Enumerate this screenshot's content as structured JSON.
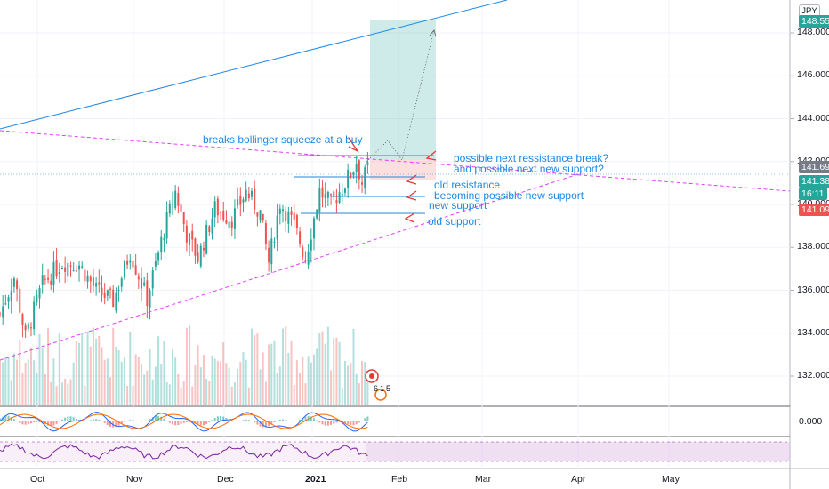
{
  "currency_badge": "JPY",
  "chart_data": {
    "type": "candlestick",
    "x_tick_labels": [
      "Oct",
      "Nov",
      "Dec",
      "2021",
      "Feb",
      "Mar",
      "Apr",
      "May"
    ],
    "y_tick_labels": [
      "148.000",
      "146.000",
      "144.000",
      "142.000",
      "140.000",
      "138.000",
      "136.000",
      "134.000",
      "132.000"
    ],
    "y_tick_values": [
      148,
      146,
      144,
      142,
      140,
      138,
      136,
      134,
      132
    ],
    "ylim": [
      131.0,
      149.5
    ],
    "oscillator_tick": "0.000",
    "price_labels": [
      {
        "value": "148.551",
        "color": "#26a69a",
        "price": 148.55
      },
      {
        "value": "141.692",
        "color": "#787b86",
        "price": 141.692
      },
      {
        "value": "141.386",
        "color": "#26a69a",
        "price": 141.386
      },
      {
        "value": "16:11",
        "color": "#26a69a",
        "price": 140.78
      },
      {
        "value": "141.093",
        "color": "#ef5350",
        "price": 141.093
      }
    ],
    "anchor_closes": [
      {
        "day": 0,
        "price": 134.9
      },
      {
        "day": 5,
        "price": 136.6
      },
      {
        "day": 9,
        "price": 133.8
      },
      {
        "day": 15,
        "price": 136.3
      },
      {
        "day": 22,
        "price": 137.3
      },
      {
        "day": 28,
        "price": 137.2
      },
      {
        "day": 34,
        "price": 136.0
      },
      {
        "day": 40,
        "price": 135.5
      },
      {
        "day": 46,
        "price": 137.8
      },
      {
        "day": 52,
        "price": 135.6
      },
      {
        "day": 58,
        "price": 138.8
      },
      {
        "day": 62,
        "price": 140.6
      },
      {
        "day": 66,
        "price": 138.6
      },
      {
        "day": 70,
        "price": 137.5
      },
      {
        "day": 76,
        "price": 139.8
      },
      {
        "day": 82,
        "price": 139.3
      },
      {
        "day": 87,
        "price": 140.6
      },
      {
        "day": 92,
        "price": 139.6
      },
      {
        "day": 95,
        "price": 137.3
      },
      {
        "day": 99,
        "price": 140.1
      },
      {
        "day": 104,
        "price": 139.0
      },
      {
        "day": 108,
        "price": 137.5
      },
      {
        "day": 113,
        "price": 140.6
      },
      {
        "day": 117,
        "price": 140.0
      },
      {
        "day": 122,
        "price": 141.0
      },
      {
        "day": 126,
        "price": 142.0
      },
      {
        "day": 128,
        "price": 141.0
      },
      {
        "day": 130,
        "price": 141.7
      }
    ],
    "annotations": {
      "bollinger": "breaks bollinger squeeze at a buy",
      "next_break": "possible next ressistance break?",
      "next_support": "and possible next new support?",
      "old_resistance": "old resistance",
      "becoming_support": "becoming possible new support",
      "new_support": "new support",
      "old_support": "old support"
    },
    "event_counts": [
      "6",
      "1",
      "5"
    ]
  }
}
